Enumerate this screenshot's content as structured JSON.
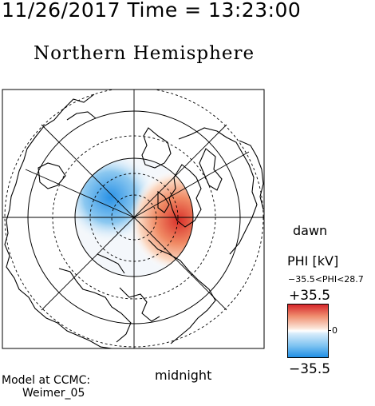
{
  "header": {
    "datetime": "11/26/2017 Time = 13:23:00"
  },
  "plot": {
    "title": "Northern Hemisphere"
  },
  "labels": {
    "dawn": "dawn",
    "midnight": "midnight"
  },
  "model": {
    "line1": "Model at CCMC:",
    "line2": "Weimer_05"
  },
  "colorbar": {
    "label": "PHI [kV]",
    "range_text": "−35.5<PHI<28.7",
    "max_label": "+35.5",
    "min_label": "−35.5",
    "zero_label": "0",
    "colors": {
      "positive": "#d6262b",
      "negative": "#1f8fe6",
      "neutral": "#ffffff"
    }
  }
}
